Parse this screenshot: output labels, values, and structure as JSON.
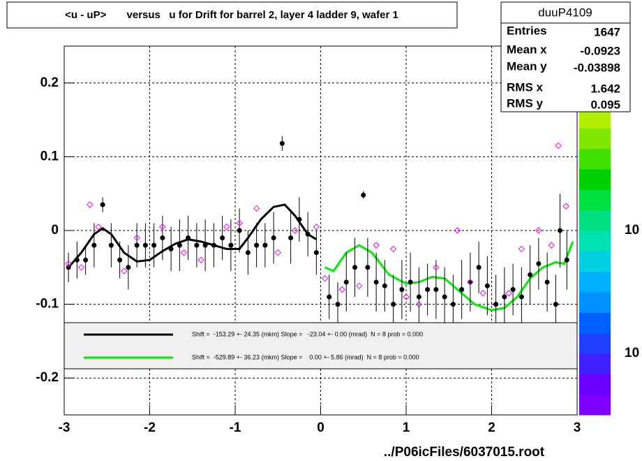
{
  "chart_data": {
    "type": "scatter",
    "title": "<u - uP>       versus   u for Drift for barrel 2, layer 4 ladder 9, wafer 1",
    "xlim": [
      -3,
      3
    ],
    "ylim": [
      -0.25,
      0.25
    ],
    "xticks": [
      -3,
      -2,
      -1,
      0,
      1,
      2,
      3
    ],
    "yticks": [
      -0.2,
      -0.1,
      0,
      0.1,
      0.2
    ],
    "grid": true,
    "series": [
      {
        "color": "#000000",
        "x": [
          -2.95,
          -2.85,
          -2.75,
          -2.65,
          -2.55,
          -2.45,
          -2.35,
          -2.25,
          -2.15,
          -2.05,
          -1.95,
          -1.85,
          -1.75,
          -1.65,
          -1.55,
          -1.45,
          -1.35,
          -1.25,
          -1.15,
          -1.05,
          -0.95,
          -0.85,
          -0.75,
          -0.65,
          -0.55,
          -0.45,
          -0.35,
          -0.25,
          -0.15,
          -0.05,
          0.1,
          0.2,
          0.3,
          0.4,
          0.5,
          0.55,
          0.65,
          0.75,
          0.85,
          0.95,
          1.05,
          1.15,
          1.25,
          1.35,
          1.45,
          1.55,
          1.65,
          1.75,
          1.85,
          1.95,
          2.05,
          2.15,
          2.25,
          2.35,
          2.45,
          2.55,
          2.65,
          2.75,
          2.8,
          2.88
        ],
        "values": [
          -0.05,
          -0.04,
          -0.04,
          -0.02,
          0.035,
          -0.02,
          -0.04,
          -0.05,
          -0.02,
          -0.02,
          -0.02,
          -0.01,
          -0.025,
          -0.02,
          -0.01,
          -0.02,
          -0.02,
          -0.02,
          -0.01,
          -0.02,
          0.0,
          -0.03,
          -0.02,
          -0.02,
          -0.01,
          0.118,
          -0.01,
          0.015,
          -0.005,
          -0.03,
          -0.09,
          -0.1,
          -0.07,
          -0.05,
          0.048,
          -0.05,
          -0.07,
          -0.075,
          -0.1,
          -0.08,
          -0.07,
          -0.09,
          -0.08,
          -0.08,
          -0.09,
          -0.1,
          -0.08,
          -0.07,
          -0.05,
          -0.075,
          -0.1,
          -0.09,
          -0.08,
          -0.09,
          -0.06,
          -0.045,
          -0.07,
          -0.1,
          0.0,
          -0.04
        ],
        "errors": [
          0.02,
          0.025,
          0.02,
          0.03,
          0.01,
          0.03,
          0.025,
          0.03,
          0.03,
          0.03,
          0.03,
          0.03,
          0.03,
          0.035,
          0.03,
          0.03,
          0.035,
          0.03,
          0.03,
          0.035,
          0.03,
          0.03,
          0.03,
          0.03,
          0.035,
          0.01,
          0.035,
          0.03,
          0.03,
          0.03,
          0.03,
          0.03,
          0.04,
          0.04,
          0.005,
          0.04,
          0.04,
          0.035,
          0.04,
          0.04,
          0.04,
          0.04,
          0.035,
          0.04,
          0.04,
          0.04,
          0.04,
          0.04,
          0.035,
          0.04,
          0.04,
          0.04,
          0.035,
          0.04,
          0.04,
          0.035,
          0.04,
          0.04,
          0.05,
          0.04
        ]
      },
      {
        "color": "#ff00ff",
        "x": [
          -2.95,
          -2.8,
          -2.7,
          -2.6,
          -2.3,
          -2.15,
          -1.85,
          -1.6,
          -1.4,
          -1.1,
          -0.95,
          -0.75,
          -0.5,
          -0.3,
          -0.05,
          0.05,
          0.25,
          0.45,
          0.65,
          0.85,
          1.0,
          1.15,
          1.35,
          1.6,
          1.75,
          1.9,
          2.2,
          2.35,
          2.55,
          2.7,
          2.78,
          2.87
        ],
        "values": [
          -0.045,
          -0.05,
          0.035,
          0.005,
          -0.055,
          -0.01,
          0.005,
          -0.03,
          -0.04,
          0.005,
          0.01,
          0.03,
          -0.03,
          0.0,
          0.005,
          -0.065,
          -0.08,
          -0.075,
          -0.02,
          -0.025,
          -0.09,
          -0.1,
          -0.05,
          0.0,
          -0.07,
          -0.085,
          -0.085,
          -0.025,
          0.0,
          -0.02,
          0.115,
          0.033
        ]
      }
    ],
    "fits": [
      {
        "color": "#000000",
        "label": "Shift =  -153.29 +- 24.35 (mkm) Slope =   -23.04 +- 0.00 (mrad)  N = 8 prob = 0.000",
        "x": [
          -2.95,
          -2.8,
          -2.65,
          -2.55,
          -2.45,
          -2.3,
          -2.15,
          -2.0,
          -1.85,
          -1.7,
          -1.55,
          -1.4,
          -1.25,
          -1.1,
          -0.95,
          -0.85,
          -0.7,
          -0.55,
          -0.42,
          -0.3,
          -0.15,
          -0.05
        ],
        "values": [
          -0.05,
          -0.03,
          -0.005,
          0.003,
          -0.005,
          -0.03,
          -0.042,
          -0.04,
          -0.028,
          -0.018,
          -0.012,
          -0.015,
          -0.02,
          -0.025,
          -0.025,
          -0.01,
          0.015,
          0.032,
          0.035,
          0.02,
          -0.005,
          -0.012
        ]
      },
      {
        "color": "#00ee00",
        "label": "Shift =  -529.89 +- 36.23 (mkm) Slope =    0.00 +- 5.86 (mrad)  N = 8 prob = 0.000",
        "x": [
          0.05,
          0.15,
          0.3,
          0.45,
          0.6,
          0.8,
          1.0,
          1.15,
          1.3,
          1.45,
          1.6,
          1.8,
          2.0,
          2.15,
          2.3,
          2.45,
          2.6,
          2.75,
          2.85,
          2.95
        ],
        "values": [
          -0.05,
          -0.055,
          -0.03,
          -0.02,
          -0.03,
          -0.06,
          -0.072,
          -0.07,
          -0.063,
          -0.065,
          -0.08,
          -0.1,
          -0.108,
          -0.105,
          -0.09,
          -0.065,
          -0.05,
          -0.043,
          -0.045,
          -0.015
        ]
      }
    ],
    "stats": {
      "name": "duuP4109",
      "rows": [
        {
          "label": "Entries",
          "value": 1647
        },
        {
          "label": "Mean x",
          "value": -0.0923
        },
        {
          "label": "Mean y",
          "value": -0.03898
        },
        {
          "label": "RMS x",
          "value": 1.642
        },
        {
          "label": "RMS y",
          "value": 0.095
        }
      ]
    },
    "colorbar_labels": [
      "10",
      "10"
    ],
    "footer": "../P06icFiles/6037015.root"
  }
}
